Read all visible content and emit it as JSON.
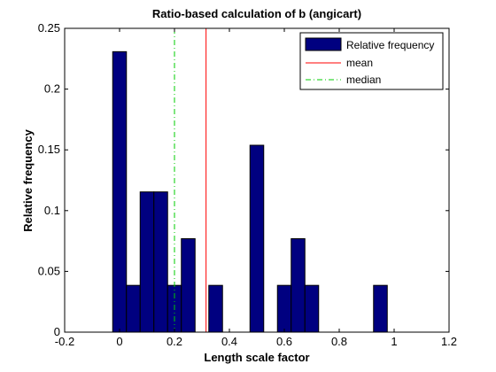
{
  "chart_data": {
    "type": "bar",
    "title": "Ratio-based calculation of b (angicart)",
    "xlabel": "Length scale factor",
    "ylabel": "Relative frequency",
    "xlim": [
      -0.2,
      1.2
    ],
    "ylim": [
      0,
      0.25
    ],
    "xticks": [
      -0.2,
      0,
      0.2,
      0.4,
      0.6,
      0.8,
      1,
      1.2
    ],
    "xtick_labels": [
      "-0.2",
      "0",
      "0.2",
      "0.4",
      "0.6",
      "0.8",
      "1",
      "1.2"
    ],
    "yticks": [
      0,
      0.05,
      0.1,
      0.15,
      0.2,
      0.25
    ],
    "ytick_labels": [
      "0",
      "0.05",
      "0.1",
      "0.15",
      "0.2",
      "0.25"
    ],
    "grid": false,
    "legend_position": "top-right",
    "bar_width": 0.05,
    "series": [
      {
        "name": "Relative frequency",
        "color": "#000080",
        "x": [
          0.0,
          0.05,
          0.1,
          0.15,
          0.2,
          0.25,
          0.3,
          0.35,
          0.4,
          0.45,
          0.5,
          0.55,
          0.6,
          0.65,
          0.7,
          0.75,
          0.8,
          0.85,
          0.9,
          0.95,
          1.0
        ],
        "values": [
          0.2308,
          0.0385,
          0.1154,
          0.1154,
          0.0385,
          0.0769,
          0.0,
          0.0385,
          0.0,
          0.0,
          0.1538,
          0.0,
          0.0385,
          0.0769,
          0.0385,
          0.0,
          0.0,
          0.0,
          0.0,
          0.0385,
          0.0
        ]
      }
    ],
    "lines": [
      {
        "name": "mean",
        "x": 0.315,
        "color": "#ff0000",
        "style": "solid"
      },
      {
        "name": "median",
        "x": 0.2,
        "color": "#00cc00",
        "style": "dash-dot"
      }
    ]
  }
}
